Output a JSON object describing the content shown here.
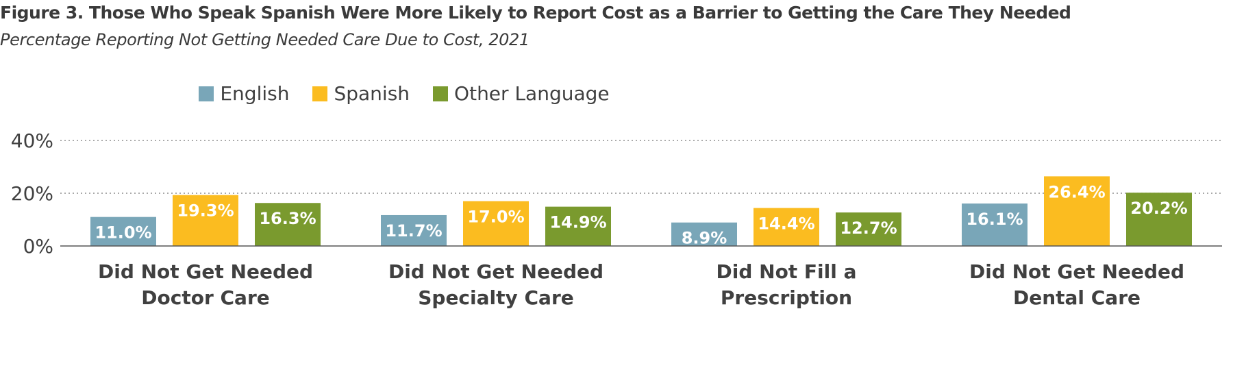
{
  "title": "Figure 3. Those Who Speak Spanish Were More Likely to Report Cost as a Barrier to Getting the Care They Needed",
  "subtitle": "Percentage Reporting Not Getting Needed Care Due to Cost, 2021",
  "legend": [
    {
      "name": "English",
      "color": "#79a6b8"
    },
    {
      "name": "Spanish",
      "color": "#fbbc20"
    },
    {
      "name": "Other Language",
      "color": "#7a9a2e"
    }
  ],
  "chart_data": {
    "type": "bar",
    "title": "Figure 3. Those Who Speak Spanish Were More Likely to Report Cost as a Barrier to Getting the Care They Needed",
    "subtitle": "Percentage Reporting Not Getting Needed Care Due to Cost, 2021",
    "categories": [
      [
        "Did Not Get Needed",
        "Doctor Care"
      ],
      [
        "Did Not Get Needed",
        "Specialty Care"
      ],
      [
        "Did Not Fill a",
        "Prescription"
      ],
      [
        "Did Not Get Needed",
        "Dental Care"
      ]
    ],
    "series": [
      {
        "name": "English",
        "color": "#79a6b8",
        "values": [
          11.0,
          11.7,
          8.9,
          16.1
        ],
        "labels": [
          "11.0%",
          "11.7%",
          "8.9%",
          "16.1%"
        ]
      },
      {
        "name": "Spanish",
        "color": "#fbbc20",
        "values": [
          19.3,
          17.0,
          14.4,
          26.4
        ],
        "labels": [
          "19.3%",
          "17.0%",
          "14.4%",
          "26.4%"
        ]
      },
      {
        "name": "Other Language",
        "color": "#7a9a2e",
        "values": [
          16.3,
          14.9,
          12.7,
          20.2
        ],
        "labels": [
          "16.3%",
          "14.9%",
          "12.7%",
          "20.2%"
        ]
      }
    ],
    "ylim": [
      0,
      40
    ],
    "yticks": [
      0,
      20,
      40
    ],
    "ytick_labels": [
      "0%",
      "20%",
      "40%"
    ],
    "grid": true,
    "legend_position": "top-center"
  }
}
